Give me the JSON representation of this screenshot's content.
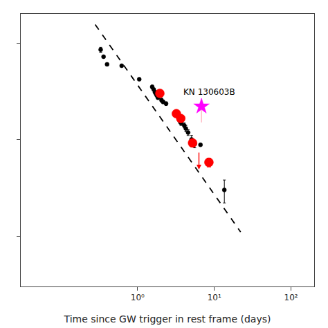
{
  "chart_data": {
    "type": "scatter",
    "xlabel": "Time since GW trigger in rest frame (days)",
    "log": true,
    "grid": false,
    "tick_labels": "x",
    "xlim": [
      0.03,
      200
    ],
    "ylim": [
      0.003,
      2.0
    ],
    "xticks": [
      {
        "value": 1,
        "label": "10⁰"
      },
      {
        "value": 10,
        "label": "10¹"
      },
      {
        "value": 100,
        "label": "10²"
      }
    ],
    "yticks": [
      0.01,
      0.1,
      1
    ],
    "series": [
      {
        "type": "line",
        "color": "#000000",
        "line_style": "dashed",
        "x": [
          0.28,
          22.0
        ],
        "y": [
          1.55,
          0.011
        ]
      },
      {
        "type": "scatter",
        "color": "#000000",
        "marker": "circle",
        "x": [
          0.33,
          0.36,
          0.4,
          0.62,
          1.05,
          1.55,
          1.62,
          1.68,
          1.72,
          1.78,
          1.84,
          2.05,
          2.15,
          2.35,
          3.55,
          3.68,
          4.05,
          4.25,
          4.55,
          5.05,
          5.55,
          6.6,
          13.5
        ],
        "y": [
          0.85,
          0.72,
          0.6,
          0.58,
          0.42,
          0.35,
          0.33,
          0.31,
          0.3,
          0.285,
          0.27,
          0.255,
          0.245,
          0.235,
          0.155,
          0.148,
          0.14,
          0.13,
          0.118,
          0.1,
          0.09,
          0.088,
          0.03
        ],
        "xerr": [
          0.0,
          0.0,
          0.0,
          0.0,
          0.0,
          0.05,
          0.0,
          0.0,
          0.05,
          0.0,
          0.0,
          0.06,
          0.06,
          0.06,
          0.06,
          0.06,
          0.06,
          0.06,
          0.06,
          0.06,
          0.06,
          0.0,
          0.4
        ],
        "yerr": [
          0.05,
          0.0,
          0.0,
          0.0,
          0.0,
          0.015,
          0.0,
          0.0,
          0.015,
          0.0,
          0.0,
          0.012,
          0.01,
          0.01,
          0.008,
          0.008,
          0.008,
          0.01,
          0.008,
          0.01,
          0.008,
          0.0,
          0.008
        ]
      },
      {
        "type": "scatter",
        "color": "red",
        "marker": "circle",
        "x": [
          1.95,
          3.2,
          3.65,
          5.2,
          8.5
        ],
        "y": [
          0.3,
          0.185,
          0.165,
          0.092,
          0.058
        ],
        "yerr": [
          0.018,
          0.012,
          0.012,
          0.008,
          0.006
        ]
      },
      {
        "type": "upper_limit",
        "color": "red",
        "marker": "arrow",
        "x": [
          6.3
        ],
        "y": [
          0.075
        ]
      },
      {
        "type": "scatter",
        "color": "magenta",
        "marker": "star",
        "x": [
          6.8
        ],
        "y": [
          0.22
        ],
        "yerr_low": [
          0.07
        ],
        "yerr_high": [
          0.0
        ]
      }
    ],
    "annotations": [
      {
        "text": "KN 130603B",
        "x": 6.8,
        "y": 0.22
      }
    ]
  }
}
